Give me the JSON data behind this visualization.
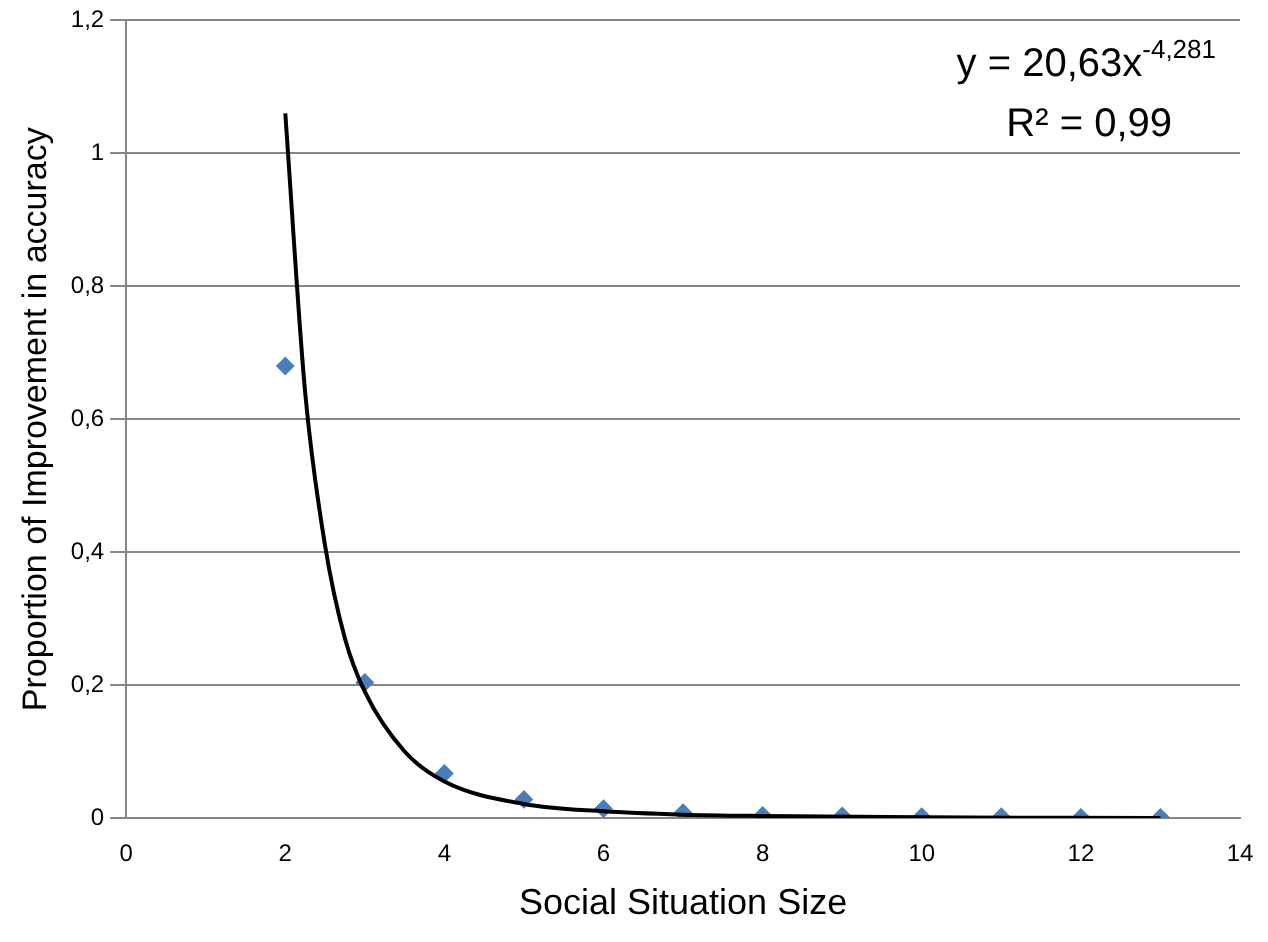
{
  "chart_data": {
    "type": "scatter",
    "xlabel": "Social Situation Size",
    "ylabel": "Proportion of Improvement in accuracy",
    "xlim": [
      0,
      14
    ],
    "xticks": [
      0,
      2,
      4,
      6,
      8,
      10,
      12,
      14
    ],
    "ylim": [
      0,
      1.2
    ],
    "yticks": [
      0,
      {
        "value": 0.2,
        "label": "0,2"
      },
      {
        "value": 0.4,
        "label": "0,4"
      },
      {
        "value": 0.6,
        "label": "0,6"
      },
      {
        "value": 0.8,
        "label": "0,8"
      },
      1,
      {
        "value": 1.2,
        "label": "1,2"
      }
    ],
    "grid": "y",
    "legend": false,
    "marker": "diamond",
    "series": [
      {
        "color": "#4a7ebb",
        "x": [
          2,
          3,
          4,
          5,
          6,
          7,
          8,
          9,
          10,
          11,
          12,
          13
        ],
        "values": [
          0.68,
          0.204,
          0.067,
          0.028,
          0.014,
          0.008,
          0.004,
          0.003,
          0.002,
          0.002,
          0.001,
          0.001
        ]
      },
      {
        "type": "line",
        "color": "#000000",
        "marker": "none",
        "x": [
          2,
          2.25,
          2.5,
          2.75,
          3,
          3.5,
          4,
          5,
          6,
          7,
          8,
          10,
          13
        ],
        "values": [
          1.06,
          0.64,
          0.41,
          0.27,
          0.19,
          0.1,
          0.055,
          0.021,
          0.01,
          0.005,
          0.003,
          0.001,
          0
        ]
      }
    ],
    "annotations": [
      "y = 20,63x$^{-4,281}$",
      "R² = 0,99"
    ]
  }
}
